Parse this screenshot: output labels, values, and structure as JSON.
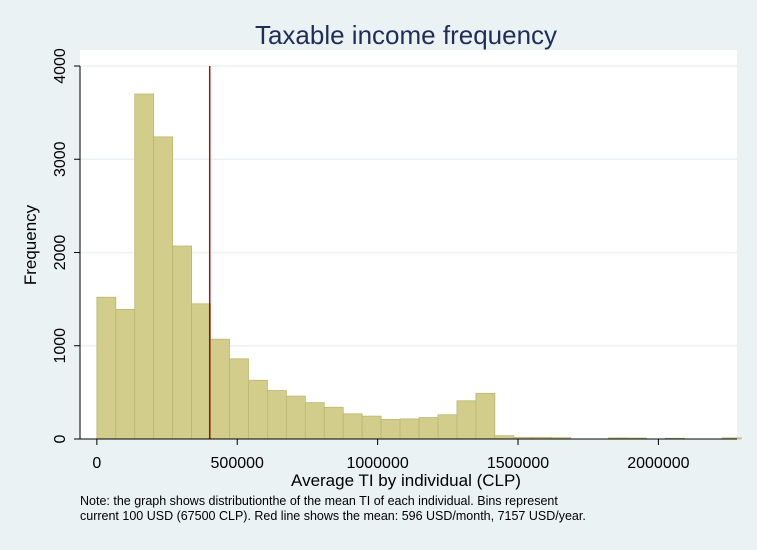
{
  "chart_data": {
    "type": "bar",
    "title": "Taxable income frequency",
    "xlabel": "Average TI by individual (CLP)",
    "ylabel": "Frequency",
    "bin_width": 67500,
    "bin_start": 0,
    "values": [
      1520,
      1390,
      3700,
      3240,
      2070,
      1450,
      1070,
      860,
      630,
      520,
      460,
      390,
      340,
      270,
      245,
      210,
      215,
      230,
      260,
      410,
      490,
      35,
      18,
      18,
      14,
      0,
      0,
      12,
      10,
      0,
      8,
      0,
      0,
      12
    ],
    "xlim": [
      -60000,
      2280000
    ],
    "ylim": [
      0,
      4000
    ],
    "x_ticks": [
      0,
      500000,
      1000000,
      1500000,
      2000000
    ],
    "y_ticks": [
      0,
      1000,
      2000,
      3000,
      4000
    ],
    "mean_line": 402000,
    "grid": true,
    "colors": {
      "bar_fill": "#d2cd8b",
      "bar_stroke": "#bcb774",
      "mean_line": "#8b1a1a",
      "title": "#1f2d5a",
      "plot_bg": "#ffffff",
      "outer_bg": "#eaf2f3",
      "grid": "#eaf2f3"
    }
  },
  "note": {
    "line1": "Note: the graph shows distributionthe of the mean TI of each individual. Bins represent",
    "line2": "current 100 USD (67500 CLP). Red line shows the mean: 596 USD/month, 7157 USD/year."
  }
}
